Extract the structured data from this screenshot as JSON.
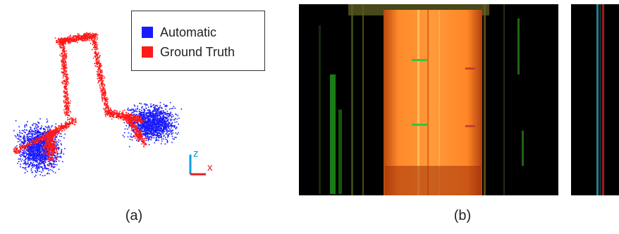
{
  "legend": {
    "automatic_label": "Automatic",
    "automatic_color": "#1a1aff",
    "ground_truth_label": "Ground Truth",
    "ground_truth_color": "#ff1a1a"
  },
  "axes": {
    "z_label": "z",
    "x_label": "x",
    "z_color": "#00a0e0",
    "x_color": "#e02020"
  },
  "captions": {
    "a": "(a)",
    "b": "(b)"
  }
}
